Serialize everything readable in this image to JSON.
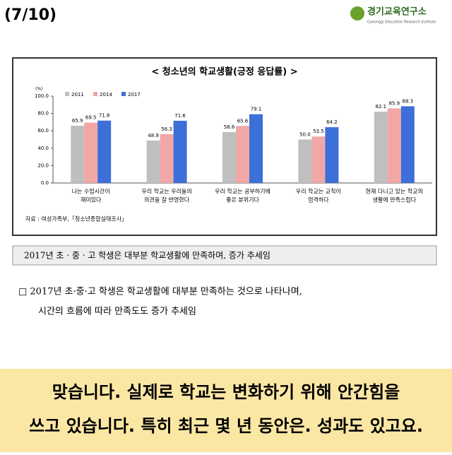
{
  "header": {
    "page": "(7/10)",
    "logo": "경기교육연구소",
    "logo_sub": "Gyeonggi Education Research Institute"
  },
  "chart_data": {
    "type": "bar",
    "title": "< 청소년의 학교생활(긍정 응답률) >",
    "y_unit": "(%)",
    "categories": [
      [
        "나는 수업시간이",
        "재미있다"
      ],
      [
        "우리 학교는 우리들의",
        "의견을 잘 반영한다"
      ],
      [
        "우리 학교는 공부하기에",
        "좋은 분위기다"
      ],
      [
        "우리 학교는 교칙이",
        "엄격하다"
      ],
      [
        "현재 다니고 있는 학교의",
        "생활에 만족스럽다"
      ]
    ],
    "series": [
      {
        "name": "2011",
        "color": "#bfbfbf",
        "values": [
          65.9,
          48.9,
          58.6,
          50.0,
          82.1
        ],
        "value_labels": [
          "65.9",
          "48.9",
          "58.6",
          "50.0",
          "82.1"
        ]
      },
      {
        "name": "2014",
        "color": "#f2a7a7",
        "values": [
          69.5,
          56.3,
          65.6,
          53.5,
          85.9
        ],
        "value_labels": [
          "69.5",
          "56.3",
          "65.6",
          "53.5",
          "85.9"
        ]
      },
      {
        "name": "2017",
        "color": "#3d6fd8",
        "values": [
          71.8,
          71.6,
          79.1,
          64.2,
          88.3
        ],
        "value_labels": [
          "71.8",
          "71.6",
          "79.1",
          "64.2",
          "88.3"
        ]
      }
    ],
    "ylim": [
      0,
      100
    ],
    "yticks": [
      {
        "value": 0,
        "label": "0.0"
      },
      {
        "value": 20,
        "label": "20.0"
      },
      {
        "value": 40,
        "label": "40.0"
      },
      {
        "value": 60,
        "label": "60.0"
      },
      {
        "value": 80,
        "label": "80.0"
      },
      {
        "value": 100,
        "label": "100.0"
      }
    ],
    "legend": "top-left",
    "source": "자료 : 여성가족부,「청소년종합실태조사」"
  },
  "summary": "2017년 초 · 중 · 고 학생은 대부분 학교생활에 만족하며, 증가 추세임",
  "bullet": [
    "□ 2017년 초·중·고 학생은 학교생활에 대부분 만족하는 것으로 나타나며,",
    "시간의 흐름에 따라 만족도도 증가 추세임"
  ],
  "caption": [
    "맞습니다. 실제로 학교는 변화하기 위해 안간힘을",
    "쓰고 있습니다. 특히 최근 몇 년 동안은. 성과도 있고요."
  ]
}
